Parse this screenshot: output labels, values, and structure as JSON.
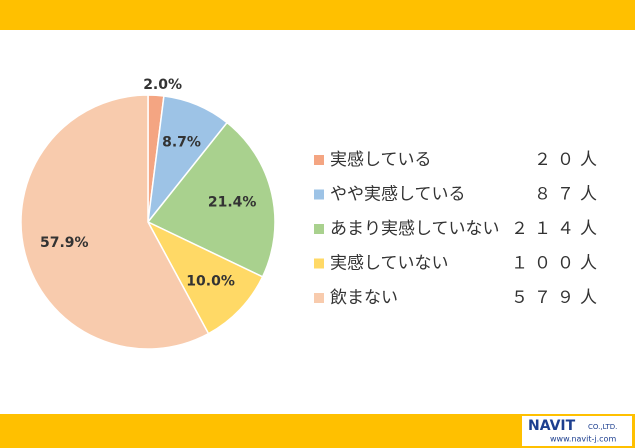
{
  "chart_data": {
    "type": "pie",
    "categories": [
      "実感している",
      "やや実感している",
      "あまり実感していない",
      "実感していない",
      "飲まない"
    ],
    "values": [
      2.0,
      8.7,
      21.4,
      10.0,
      57.9
    ],
    "value_labels": [
      "2.0%",
      "8.7%",
      "21.4%",
      "10.0%",
      "57.9%"
    ],
    "count_labels": [
      "２０人",
      "８７人",
      "２１４人",
      "１００人",
      "５７９人"
    ],
    "colors": [
      "#f4a582",
      "#9dc3e6",
      "#a9d18e",
      "#ffd966",
      "#f8cbad"
    ]
  },
  "footer": {
    "logo": "NAVIT",
    "company": "CO.,LTD.",
    "url": "www.navit-j.com"
  }
}
